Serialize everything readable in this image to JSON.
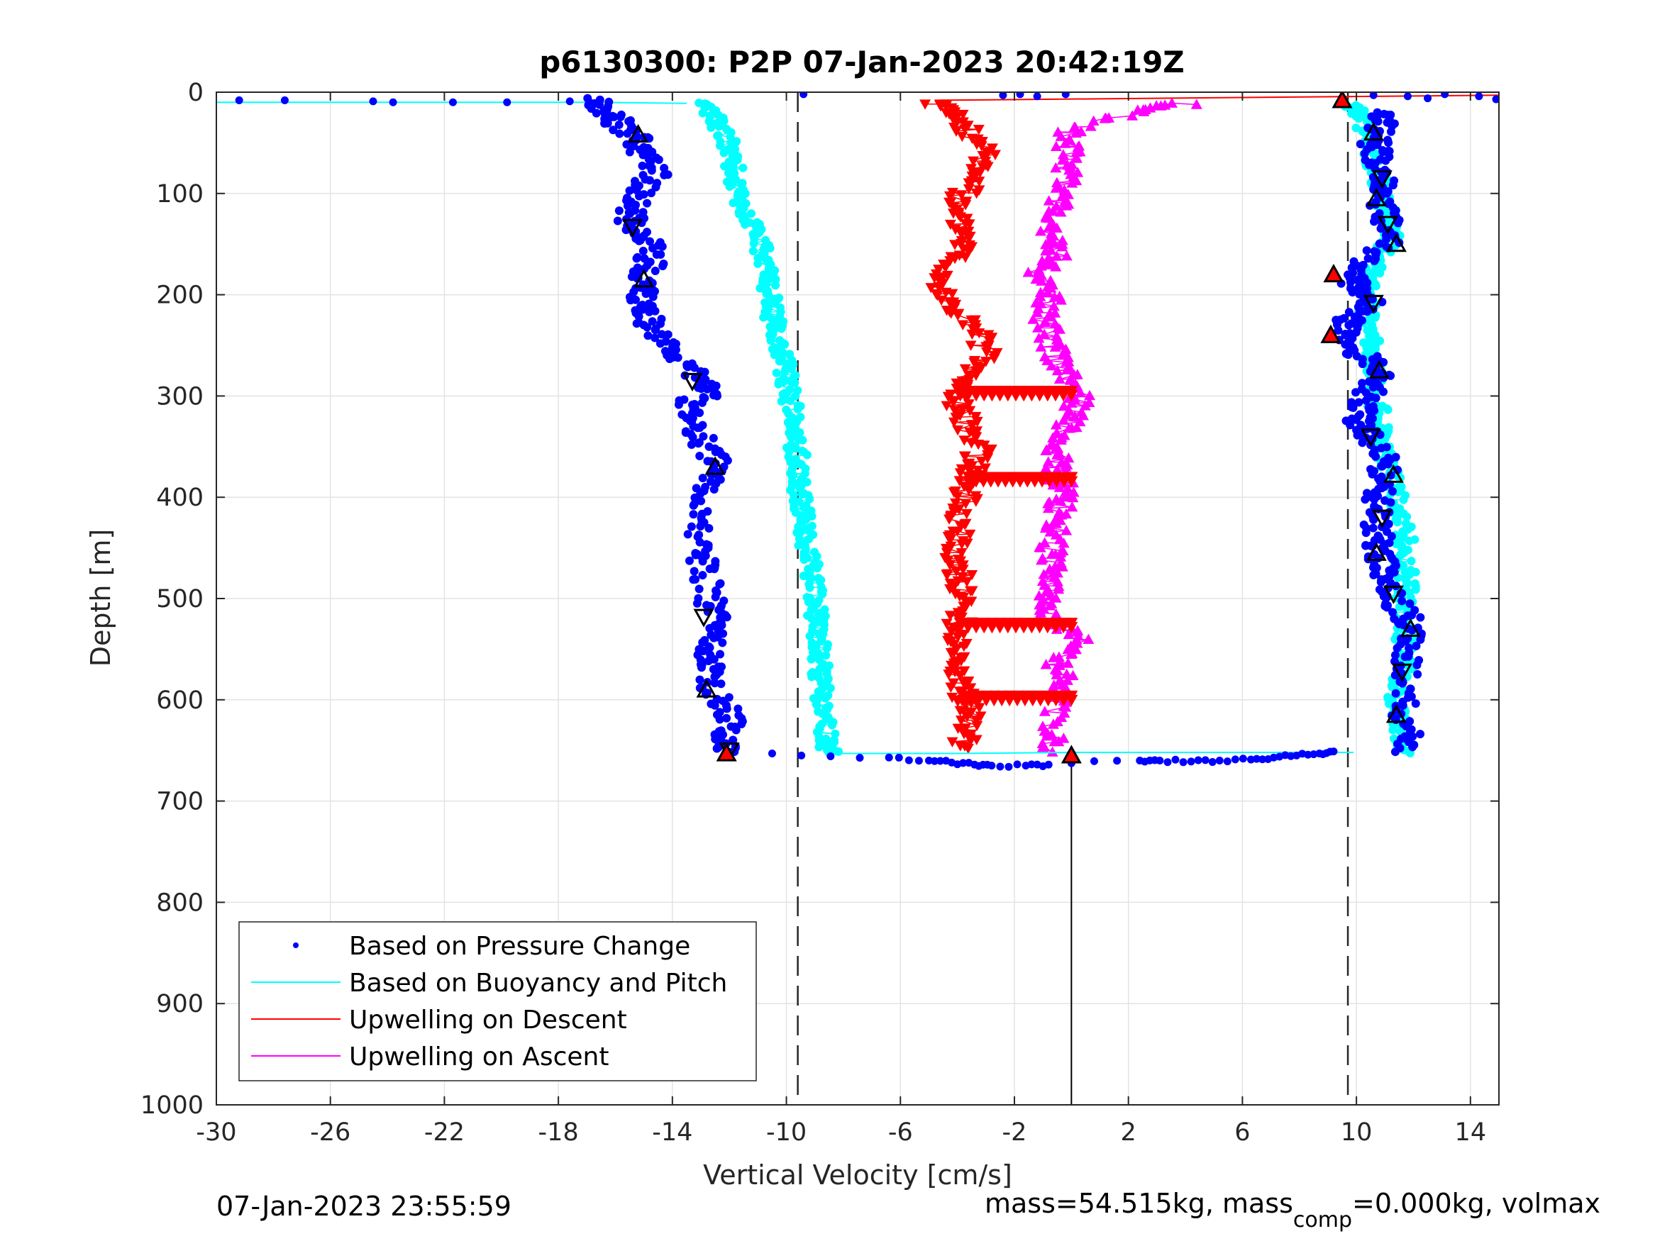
{
  "chart_data": {
    "type": "scatter",
    "title": "p6130300: P2P 07-Jan-2023 20:42:19Z",
    "xlabel": "Vertical Velocity [cm/s]",
    "ylabel": "Depth [m]",
    "xlim": [
      -30,
      15
    ],
    "ylim": [
      0,
      1000
    ],
    "y_reversed": true,
    "grid": true,
    "xticks": [
      -30,
      -26,
      -22,
      -18,
      -14,
      -10,
      -6,
      -2,
      2,
      6,
      10,
      14
    ],
    "yticks": [
      0,
      100,
      200,
      300,
      400,
      500,
      600,
      700,
      800,
      900,
      1000
    ],
    "legend_position": "bottom-left",
    "reference_lines": {
      "dashed": [
        -9.6,
        9.7
      ],
      "solid": {
        "x": 0,
        "from_depth": 655,
        "to_depth": 1000
      }
    },
    "series": [
      {
        "name": "Based on Pressure Change",
        "marker": "dot",
        "color": "#0000ff",
        "profiles": [
          {
            "label": "descent",
            "depth": [
              8,
              20,
              30,
              45,
              60,
              80,
              100,
              120,
              135,
              150,
              170,
              190,
              205,
              220,
              240,
              260,
              280,
              295,
              310,
              330,
              350,
              370,
              390,
              420,
              450,
              470,
              500,
              520,
              540,
              560,
              580,
              600,
              620,
              640,
              652
            ],
            "x": [
              -16.8,
              -16.2,
              -15.9,
              -15.3,
              -15.0,
              -14.6,
              -15.2,
              -15.4,
              -15.5,
              -14.7,
              -14.8,
              -15.0,
              -15.2,
              -14.9,
              -14.6,
              -14.1,
              -13.2,
              -12.6,
              -13.5,
              -13.3,
              -12.8,
              -12.4,
              -12.9,
              -13.0,
              -13.1,
              -12.8,
              -12.7,
              -12.5,
              -12.7,
              -12.6,
              -12.7,
              -12.3,
              -11.9,
              -12.1,
              -12.2
            ]
          },
          {
            "label": "ascent",
            "depth": [
              650,
              630,
              600,
              575,
              550,
              530,
              510,
              490,
              470,
              455,
              440,
              420,
              400,
              380,
              360,
              340,
              325,
              310,
              290,
              275,
              260,
              240,
              225,
              210,
              195,
              180,
              160,
              140,
              120,
              100,
              80,
              60,
              45,
              30,
              20
            ],
            "x": [
              11.5,
              11.8,
              11.6,
              11.7,
              11.8,
              12.0,
              11.5,
              11.2,
              11.0,
              10.7,
              10.9,
              10.6,
              10.8,
              11.0,
              10.9,
              10.4,
              10.1,
              10.2,
              10.6,
              10.9,
              10.2,
              9.6,
              9.7,
              10.5,
              10.1,
              9.8,
              10.6,
              11.3,
              11.0,
              10.9,
              10.8,
              10.7,
              10.6,
              11.0,
              10.5
            ]
          },
          {
            "label": "surface-descent",
            "depth": [
              8,
              8,
              9,
              10,
              10,
              10,
              9,
              10
            ],
            "x": [
              -29.2,
              -27.6,
              -24.5,
              -23.8,
              -21.7,
              -19.8,
              -17.6,
              -16.9
            ]
          },
          {
            "label": "bottom-turn",
            "depth": [
              653,
              657,
              660,
              662,
              664,
              665,
              665,
              664,
              660,
              660,
              661,
              660,
              659,
              657,
              655,
              653,
              651
            ],
            "x": [
              -10.5,
              -6.4,
              -5.0,
              -4.2,
              -3.4,
              -2.8,
              -1.6,
              -0.8,
              2.4,
              3.1,
              4.2,
              5.2,
              6.3,
              7.1,
              7.9,
              8.7,
              9.2
            ]
          },
          {
            "label": "surface-ascent",
            "depth": [
              2,
              2,
              3,
              4,
              2,
              3,
              4,
              6,
              2,
              4,
              7
            ],
            "x": [
              -9.4,
              -1.8,
              -2.4,
              -1.2,
              -0.2,
              10.6,
              11.8,
              12.5,
              13.1,
              14.3,
              14.9
            ]
          }
        ]
      },
      {
        "name": "Based on Buoyancy and Pitch",
        "marker": "line-dots",
        "color": "#00ffff",
        "profiles": [
          {
            "label": "descent",
            "depth": [
              10,
              20,
              40,
              60,
              80,
              100,
              120,
              140,
              160,
              180,
              200,
              220,
              240,
              260,
              280,
              300,
              320,
              340,
              360,
              380,
              400,
              420,
              440,
              460,
              480,
              500,
              520,
              540,
              560,
              580,
              600,
              620,
              640,
              653
            ],
            "x": [
              -13.2,
              -12.6,
              -12.2,
              -11.9,
              -11.8,
              -11.7,
              -11.4,
              -11.0,
              -10.8,
              -10.7,
              -10.6,
              -10.5,
              -10.3,
              -10.1,
              -10.0,
              -9.9,
              -9.8,
              -9.7,
              -9.6,
              -9.6,
              -9.5,
              -9.4,
              -9.3,
              -9.2,
              -9.1,
              -9.0,
              -8.9,
              -8.9,
              -8.8,
              -8.8,
              -8.7,
              -8.6,
              -8.6,
              -8.5
            ]
          },
          {
            "label": "ascent",
            "depth": [
              652,
              640,
              620,
              600,
              580,
              560,
              540,
              520,
              500,
              480,
              460,
              440,
              420,
              400,
              380,
              360,
              340,
              320,
              300,
              280,
              260,
              240,
              220,
              200,
              180,
              160,
              140,
              120,
              100,
              80,
              60,
              40,
              20,
              10
            ],
            "x": [
              11.7,
              11.6,
              11.5,
              11.4,
              11.6,
              11.8,
              11.7,
              11.6,
              11.7,
              11.8,
              11.6,
              11.7,
              11.5,
              11.4,
              11.2,
              11.0,
              10.9,
              10.8,
              10.7,
              10.6,
              10.5,
              10.5,
              10.4,
              10.4,
              10.6,
              10.9,
              11.3,
              11.1,
              10.9,
              10.7,
              10.6,
              10.4,
              10.1,
              9.8
            ]
          },
          {
            "label": "surface",
            "depth": [
              10,
              10,
              10,
              10,
              11
            ],
            "x": [
              -30.0,
              -28.0,
              -22.0,
              -17.0,
              -13.5
            ]
          },
          {
            "label": "bottom",
            "depth": [
              653,
              653,
              652,
              652
            ],
            "x": [
              -8.5,
              -4.0,
              0.0,
              9.9
            ]
          }
        ]
      },
      {
        "name": "Upwelling on Descent",
        "marker": "triangle-down",
        "color": "#ff0000",
        "profiles": [
          {
            "label": "profile",
            "depth": [
              10,
              20,
              40,
              60,
              80,
              100,
              120,
              140,
              160,
              180,
              200,
              220,
              240,
              260,
              280,
              292,
              310,
              330,
              350,
              370,
              380,
              400,
              420,
              440,
              460,
              480,
              500,
              520,
              540,
              560,
              580,
              596,
              610,
              630,
              650
            ],
            "x": [
              -4.8,
              -4.2,
              -3.6,
              -3.0,
              -3.2,
              -3.8,
              -4.2,
              -3.6,
              -3.8,
              -4.4,
              -4.6,
              -3.9,
              -3.2,
              -3.0,
              -3.6,
              -3.9,
              -4.0,
              -3.6,
              -3.2,
              -3.4,
              -3.6,
              -3.7,
              -3.9,
              -4.0,
              -4.1,
              -3.9,
              -3.8,
              -3.9,
              -4.0,
              -4.0,
              -3.9,
              -3.8,
              -3.6,
              -3.7,
              -3.8
            ]
          },
          {
            "label": "bands",
            "depth": [
              295,
              380,
              524,
              596
            ],
            "x_from": [
              -3.9,
              -3.6,
              -3.9,
              -3.8
            ],
            "x_to": [
              0.0,
              0.0,
              0.0,
              0.0
            ]
          }
        ]
      },
      {
        "name": "Upwelling on Ascent",
        "marker": "triangle-up",
        "color": "#ff00ff",
        "profiles": [
          {
            "label": "profile",
            "depth": [
              650,
              630,
              600,
              580,
              560,
              540,
              520,
              500,
              480,
              460,
              440,
              420,
              400,
              380,
              360,
              340,
              320,
              300,
              280,
              260,
              240,
              220,
              200,
              180,
              160,
              140,
              120,
              100,
              80,
              60,
              40,
              20,
              10
            ],
            "x": [
              -0.8,
              -0.6,
              -0.5,
              -0.3,
              -0.6,
              0.3,
              -0.7,
              -0.9,
              -0.6,
              -0.8,
              -0.6,
              -0.5,
              -0.3,
              -0.4,
              -0.5,
              -0.3,
              0.0,
              0.3,
              -0.2,
              -0.5,
              -0.8,
              -1.0,
              -0.7,
              -1.2,
              -0.5,
              -0.8,
              -0.6,
              -0.4,
              -0.2,
              0.0,
              -0.3,
              2.1,
              4.2
            ]
          }
        ]
      }
    ],
    "annotations": {
      "dive_markers": {
        "marker": "triangle-outline",
        "color": "#000000",
        "depth": [
          42,
          133,
          185,
          285,
          370,
          518,
          590,
          650,
          40,
          85,
          105,
          130,
          150,
          208,
          275,
          340,
          378,
          420,
          455,
          495,
          530,
          572,
          615
        ],
        "x": [
          -15.2,
          -15.4,
          -15.0,
          -13.3,
          -12.5,
          -12.9,
          -12.8,
          -12.0,
          10.6,
          10.9,
          10.7,
          11.1,
          11.4,
          10.6,
          10.8,
          10.5,
          11.3,
          10.9,
          10.7,
          11.3,
          11.9,
          11.6,
          11.4
        ]
      },
      "special_markers": {
        "marker": "triangle-filled",
        "color": "#ff0000",
        "depth": [
          8,
          180,
          240,
          653,
          655
        ],
        "x": [
          9.5,
          9.2,
          9.1,
          -12.1,
          0.0
        ]
      }
    },
    "footer_left": "07-Jan-2023 23:55:59",
    "footer_right": {
      "prefix": "mass=54.515kg, mass",
      "subscript": "comp",
      "suffix": "=0.000kg, volmax"
    }
  }
}
